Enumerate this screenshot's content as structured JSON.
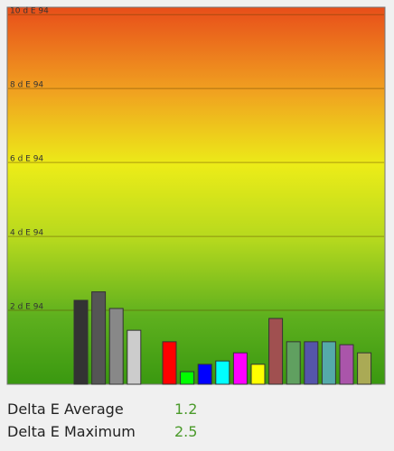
{
  "chart_data": {
    "type": "bar",
    "values": [
      2.27,
      2.5,
      2.05,
      1.46,
      null,
      1.15,
      0.34,
      0.54,
      0.63,
      0.85,
      0.54,
      1.78,
      1.15,
      1.15,
      1.15,
      1.07,
      0.85
    ],
    "colors": [
      "#333333",
      "#555555",
      "#888888",
      "#cccccc",
      null,
      "#ff0000",
      "#00ff00",
      "#0000ff",
      "#00ffff",
      "#ff00ff",
      "#ffff00",
      "#a05050",
      "#60a060",
      "#5555aa",
      "#55aaaa",
      "#aa55aa",
      "#aaaa55"
    ],
    "ylim": [
      0,
      10.2
    ],
    "yticks": [
      {
        "value": 2,
        "label": "2 d E 94"
      },
      {
        "value": 4,
        "label": "4 d E 94"
      },
      {
        "value": 6,
        "label": "6 d E 94"
      },
      {
        "value": 8,
        "label": "8 d E 94"
      },
      {
        "value": 10,
        "label": "10 d E 94"
      }
    ],
    "grid": true
  },
  "stats": [
    {
      "label": "Delta E Average",
      "value": "1.2"
    },
    {
      "label": "Delta E Maximum",
      "value": "2.5"
    }
  ]
}
